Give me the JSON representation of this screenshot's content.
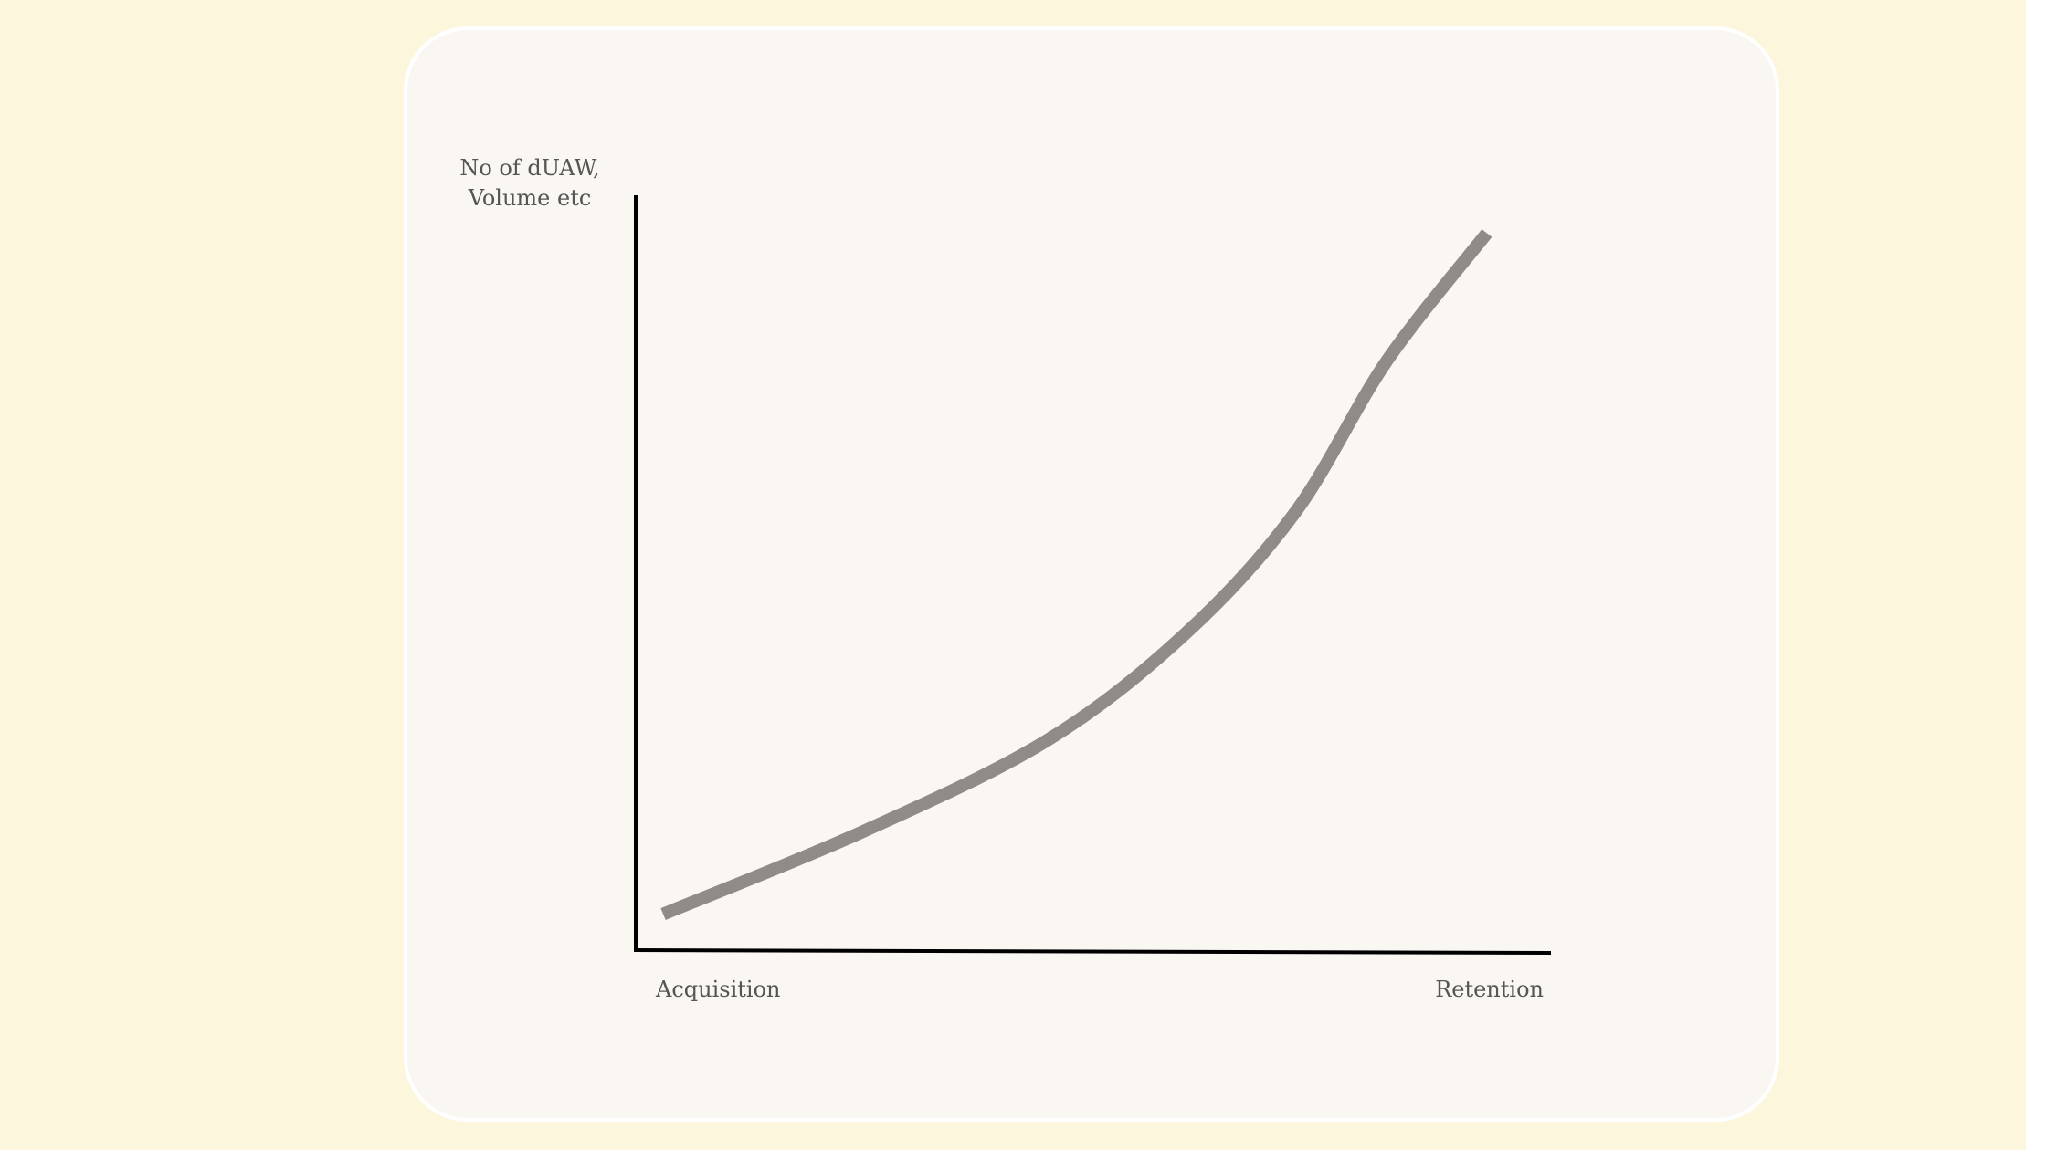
{
  "chart_data": {
    "type": "line",
    "ylabel_lines": [
      "No of dUAW,",
      "Volume etc"
    ],
    "x_labels": {
      "start": "Acquisition",
      "end": "Retention"
    },
    "series": [
      {
        "values_shape": "exponential growth",
        "points_normalized": [
          [
            0.03,
            0.05
          ],
          [
            0.25,
            0.16
          ],
          [
            0.45,
            0.28
          ],
          [
            0.6,
            0.42
          ],
          [
            0.72,
            0.58
          ],
          [
            0.82,
            0.78
          ],
          [
            0.93,
            0.95
          ]
        ],
        "color": "#8f8b86"
      }
    ],
    "grid": false,
    "axis_color": "#000000"
  },
  "colors": {
    "page_background": "#fcf7dc",
    "card_background": "#faf6f2",
    "label_text": "#555555"
  }
}
